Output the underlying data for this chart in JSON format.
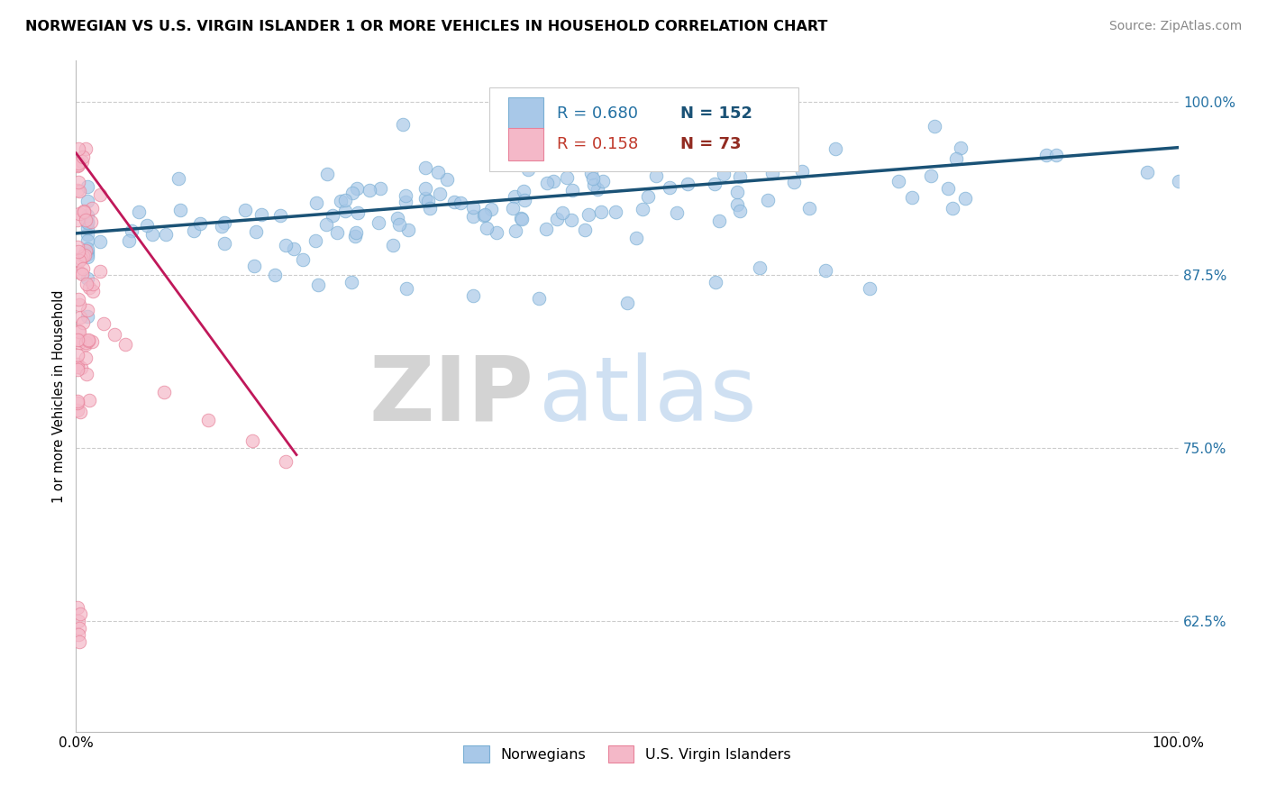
{
  "title": "NORWEGIAN VS U.S. VIRGIN ISLANDER 1 OR MORE VEHICLES IN HOUSEHOLD CORRELATION CHART",
  "source": "Source: ZipAtlas.com",
  "ylabel": "1 or more Vehicles in Household",
  "xlim": [
    0.0,
    1.0
  ],
  "ylim": [
    0.545,
    1.03
  ],
  "blue_R": 0.68,
  "blue_N": 152,
  "pink_R": 0.158,
  "pink_N": 73,
  "blue_color": "#a8c8e8",
  "blue_edge": "#7aafd4",
  "pink_color": "#f4b8c8",
  "pink_edge": "#e8829a",
  "trend_blue": "#1a5276",
  "trend_pink": "#c0185a",
  "yticks": [
    0.625,
    0.75,
    0.875,
    1.0
  ],
  "ytick_labels": [
    "62.5%",
    "75.0%",
    "87.5%",
    "100.0%"
  ],
  "legend_R_blue_color": "#2471a3",
  "legend_N_blue_color": "#1a5276",
  "legend_R_pink_color": "#c0392b",
  "legend_N_pink_color": "#922b21"
}
